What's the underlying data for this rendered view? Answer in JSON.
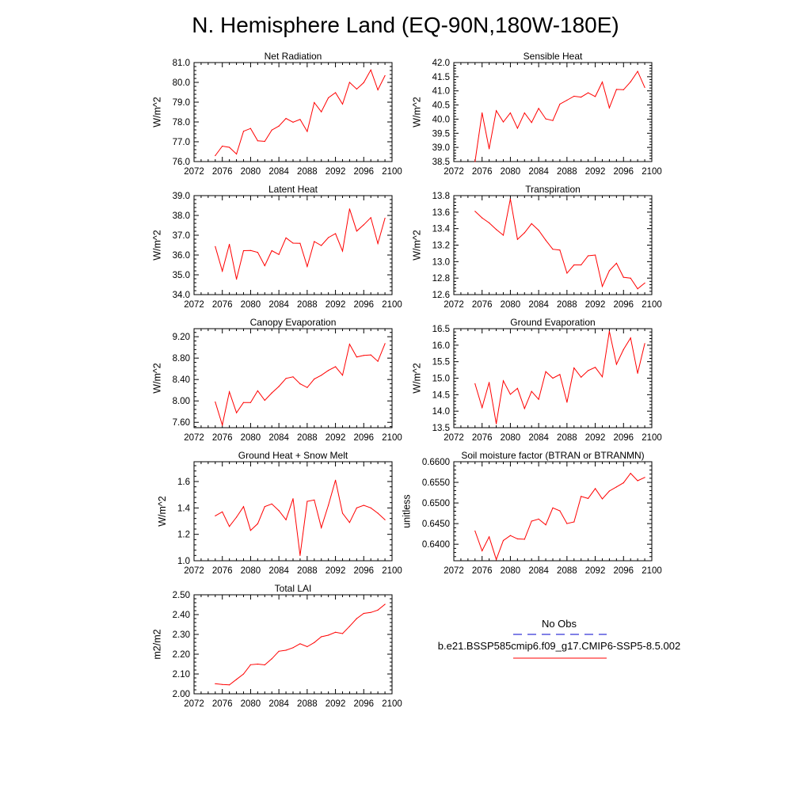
{
  "title": "N. Hemisphere Land (EQ-90N,180W-180E)",
  "colors": {
    "model": "#ff0000",
    "obs": "#0000cd",
    "axis": "#000000"
  },
  "legend": {
    "obs_label": "No Obs",
    "model_label": "b.e21.BSSP585cmip6.f09_g17.CMIP6-SSP5-8.5.002"
  },
  "chart_data": [
    {
      "type": "line",
      "title": "Net Radiation",
      "xlabel": "",
      "ylabel": "W/m^2",
      "xlim": [
        2072,
        2100
      ],
      "ylim": [
        76.0,
        81.0
      ],
      "xticks": [
        2072,
        2076,
        2080,
        2084,
        2088,
        2092,
        2096,
        2100
      ],
      "yticks": [
        "76.0",
        "77.0",
        "78.0",
        "79.0",
        "80.0",
        "81.0"
      ],
      "x": [
        2075,
        2076,
        2077,
        2078,
        2079,
        2080,
        2081,
        2082,
        2083,
        2084,
        2085,
        2086,
        2087,
        2088,
        2089,
        2090,
        2091,
        2092,
        2093,
        2094,
        2095,
        2096,
        2097,
        2098,
        2099
      ],
      "series": [
        {
          "values": [
            76.3,
            76.78,
            76.72,
            76.38,
            77.53,
            77.67,
            77.05,
            77.02,
            77.59,
            77.79,
            78.18,
            77.99,
            78.13,
            77.52,
            78.98,
            78.51,
            79.22,
            79.48,
            78.9,
            80.0,
            79.66,
            79.99,
            80.63,
            79.62,
            80.34
          ]
        }
      ]
    },
    {
      "type": "line",
      "title": "Sensible Heat",
      "xlabel": "",
      "ylabel": "W/m^2",
      "xlim": [
        2072,
        2100
      ],
      "ylim": [
        38.5,
        42.0
      ],
      "xticks": [
        2072,
        2076,
        2080,
        2084,
        2088,
        2092,
        2096,
        2100
      ],
      "yticks": [
        "38.5",
        "39.0",
        "39.5",
        "40.0",
        "40.5",
        "41.0",
        "41.5",
        "42.0"
      ],
      "x": [
        2075,
        2076,
        2077,
        2078,
        2079,
        2080,
        2081,
        2082,
        2083,
        2084,
        2085,
        2086,
        2087,
        2088,
        2089,
        2090,
        2091,
        2092,
        2093,
        2094,
        2095,
        2096,
        2097,
        2098,
        2099
      ],
      "series": [
        {
          "values": [
            38.5,
            40.22,
            38.95,
            40.3,
            39.9,
            40.22,
            39.68,
            40.22,
            39.88,
            40.38,
            40.01,
            39.95,
            40.53,
            40.67,
            40.81,
            40.78,
            40.93,
            40.8,
            41.31,
            40.4,
            41.05,
            41.04,
            41.32,
            41.69,
            41.12
          ]
        }
      ]
    },
    {
      "type": "line",
      "title": "Latent Heat",
      "xlabel": "",
      "ylabel": "W/m^2",
      "xlim": [
        2072,
        2100
      ],
      "ylim": [
        34.0,
        39.0
      ],
      "xticks": [
        2072,
        2076,
        2080,
        2084,
        2088,
        2092,
        2096,
        2100
      ],
      "yticks": [
        "34.0",
        "35.0",
        "36.0",
        "37.0",
        "38.0",
        "39.0"
      ],
      "x": [
        2075,
        2076,
        2077,
        2078,
        2079,
        2080,
        2081,
        2082,
        2083,
        2084,
        2085,
        2086,
        2087,
        2088,
        2089,
        2090,
        2091,
        2092,
        2093,
        2094,
        2095,
        2096,
        2097,
        2098,
        2099
      ],
      "series": [
        {
          "values": [
            36.43,
            35.19,
            36.54,
            34.78,
            36.22,
            36.23,
            36.13,
            35.46,
            36.22,
            36.03,
            36.87,
            36.6,
            36.59,
            35.42,
            36.68,
            36.48,
            36.88,
            37.08,
            36.2,
            38.33,
            37.21,
            37.53,
            37.89,
            36.58,
            37.86
          ]
        }
      ]
    },
    {
      "type": "line",
      "title": "Transpiration",
      "xlabel": "",
      "ylabel": "W/m^2",
      "xlim": [
        2072,
        2100
      ],
      "ylim": [
        12.6,
        13.8
      ],
      "xticks": [
        2072,
        2076,
        2080,
        2084,
        2088,
        2092,
        2096,
        2100
      ],
      "yticks": [
        "12.6",
        "12.8",
        "13.0",
        "13.2",
        "13.4",
        "13.6",
        "13.8"
      ],
      "x": [
        2075,
        2076,
        2077,
        2078,
        2079,
        2080,
        2081,
        2082,
        2083,
        2084,
        2085,
        2086,
        2087,
        2088,
        2089,
        2090,
        2091,
        2092,
        2093,
        2094,
        2095,
        2096,
        2097,
        2098,
        2099
      ],
      "series": [
        {
          "values": [
            13.61,
            13.53,
            13.47,
            13.39,
            13.32,
            13.76,
            13.27,
            13.35,
            13.46,
            13.38,
            13.26,
            13.15,
            13.14,
            12.86,
            12.96,
            12.96,
            13.07,
            13.08,
            12.7,
            12.89,
            12.98,
            12.81,
            12.8,
            12.67,
            12.74
          ]
        }
      ]
    },
    {
      "type": "line",
      "title": "Canopy Evaporation",
      "xlabel": "",
      "ylabel": "W/m^2",
      "xlim": [
        2072,
        2100
      ],
      "ylim": [
        7.5,
        9.35
      ],
      "xticks": [
        2072,
        2076,
        2080,
        2084,
        2088,
        2092,
        2096,
        2100
      ],
      "yticks": [
        "7.60",
        "8.00",
        "8.40",
        "8.80",
        "9.20"
      ],
      "x": [
        2075,
        2076,
        2077,
        2078,
        2079,
        2080,
        2081,
        2082,
        2083,
        2084,
        2085,
        2086,
        2087,
        2088,
        2089,
        2090,
        2091,
        2092,
        2093,
        2094,
        2095,
        2096,
        2097,
        2098,
        2099
      ],
      "series": [
        {
          "values": [
            7.98,
            7.55,
            8.17,
            7.78,
            7.97,
            7.97,
            8.19,
            8.01,
            8.15,
            8.27,
            8.42,
            8.45,
            8.32,
            8.25,
            8.41,
            8.48,
            8.57,
            8.64,
            8.48,
            9.06,
            8.82,
            8.85,
            8.86,
            8.74,
            9.07
          ]
        }
      ]
    },
    {
      "type": "line",
      "title": "Ground Evaporation",
      "xlabel": "",
      "ylabel": "W/m^2",
      "xlim": [
        2072,
        2100
      ],
      "ylim": [
        13.5,
        16.5
      ],
      "xticks": [
        2072,
        2076,
        2080,
        2084,
        2088,
        2092,
        2096,
        2100
      ],
      "yticks": [
        "13.5",
        "14.0",
        "14.5",
        "15.0",
        "15.5",
        "16.0",
        "16.5"
      ],
      "x": [
        2075,
        2076,
        2077,
        2078,
        2079,
        2080,
        2081,
        2082,
        2083,
        2084,
        2085,
        2086,
        2087,
        2088,
        2089,
        2090,
        2091,
        2092,
        2093,
        2094,
        2095,
        2096,
        2097,
        2098,
        2099
      ],
      "series": [
        {
          "values": [
            14.83,
            14.11,
            14.87,
            13.62,
            14.92,
            14.51,
            14.69,
            14.08,
            14.6,
            14.36,
            15.2,
            15.0,
            15.11,
            14.27,
            15.31,
            15.03,
            15.23,
            15.33,
            15.04,
            16.42,
            15.42,
            15.87,
            16.22,
            15.15,
            16.05
          ]
        }
      ]
    },
    {
      "type": "line",
      "title": "Ground Heat + Snow Melt",
      "xlabel": "",
      "ylabel": "W/m^2",
      "xlim": [
        2072,
        2100
      ],
      "ylim": [
        1.0,
        1.75
      ],
      "xticks": [
        2072,
        2076,
        2080,
        2084,
        2088,
        2092,
        2096,
        2100
      ],
      "yticks": [
        "1.0",
        "1.2",
        "1.4",
        "1.6"
      ],
      "x": [
        2075,
        2076,
        2077,
        2078,
        2079,
        2080,
        2081,
        2082,
        2083,
        2084,
        2085,
        2086,
        2087,
        2088,
        2089,
        2090,
        2091,
        2092,
        2093,
        2094,
        2095,
        2096,
        2097,
        2098,
        2099
      ],
      "series": [
        {
          "values": [
            1.34,
            1.37,
            1.26,
            1.33,
            1.41,
            1.23,
            1.28,
            1.41,
            1.43,
            1.38,
            1.31,
            1.47,
            1.04,
            1.45,
            1.46,
            1.25,
            1.42,
            1.61,
            1.36,
            1.29,
            1.4,
            1.42,
            1.4,
            1.36,
            1.31
          ]
        }
      ]
    },
    {
      "type": "line",
      "title": "Soil moisture factor (BTRAN or BTRANMN)",
      "xlabel": "",
      "ylabel": "unitless",
      "xlim": [
        2072,
        2100
      ],
      "ylim": [
        0.636,
        0.66
      ],
      "xticks": [
        2072,
        2076,
        2080,
        2084,
        2088,
        2092,
        2096,
        2100
      ],
      "yticks": [
        "0.6400",
        "0.6450",
        "0.6500",
        "0.6550",
        "0.6600"
      ],
      "x": [
        2075,
        2076,
        2077,
        2078,
        2079,
        2080,
        2081,
        2082,
        2083,
        2084,
        2085,
        2086,
        2087,
        2088,
        2089,
        2090,
        2091,
        2092,
        2093,
        2094,
        2095,
        2096,
        2097,
        2098,
        2099
      ],
      "series": [
        {
          "values": [
            0.6432,
            0.6384,
            0.6418,
            0.6363,
            0.6409,
            0.6421,
            0.6413,
            0.6412,
            0.6456,
            0.6461,
            0.6447,
            0.6488,
            0.6481,
            0.645,
            0.6454,
            0.6516,
            0.6511,
            0.6535,
            0.651,
            0.6529,
            0.6539,
            0.6549,
            0.6572,
            0.6554,
            0.6562
          ]
        }
      ]
    },
    {
      "type": "line",
      "title": "Total LAI",
      "xlabel": "",
      "ylabel": "m2/m2",
      "xlim": [
        2072,
        2100
      ],
      "ylim": [
        2.0,
        2.5
      ],
      "xticks": [
        2072,
        2076,
        2080,
        2084,
        2088,
        2092,
        2096,
        2100
      ],
      "yticks": [
        "2.00",
        "2.10",
        "2.20",
        "2.30",
        "2.40",
        "2.50"
      ],
      "x": [
        2075,
        2076,
        2077,
        2078,
        2079,
        2080,
        2081,
        2082,
        2083,
        2084,
        2085,
        2086,
        2087,
        2088,
        2089,
        2090,
        2091,
        2092,
        2093,
        2094,
        2095,
        2096,
        2097,
        2098,
        2099
      ],
      "series": [
        {
          "values": [
            2.051,
            2.047,
            2.045,
            2.073,
            2.1,
            2.147,
            2.15,
            2.146,
            2.177,
            2.215,
            2.22,
            2.233,
            2.253,
            2.238,
            2.259,
            2.288,
            2.296,
            2.311,
            2.304,
            2.341,
            2.38,
            2.406,
            2.411,
            2.423,
            2.452
          ]
        }
      ]
    }
  ]
}
